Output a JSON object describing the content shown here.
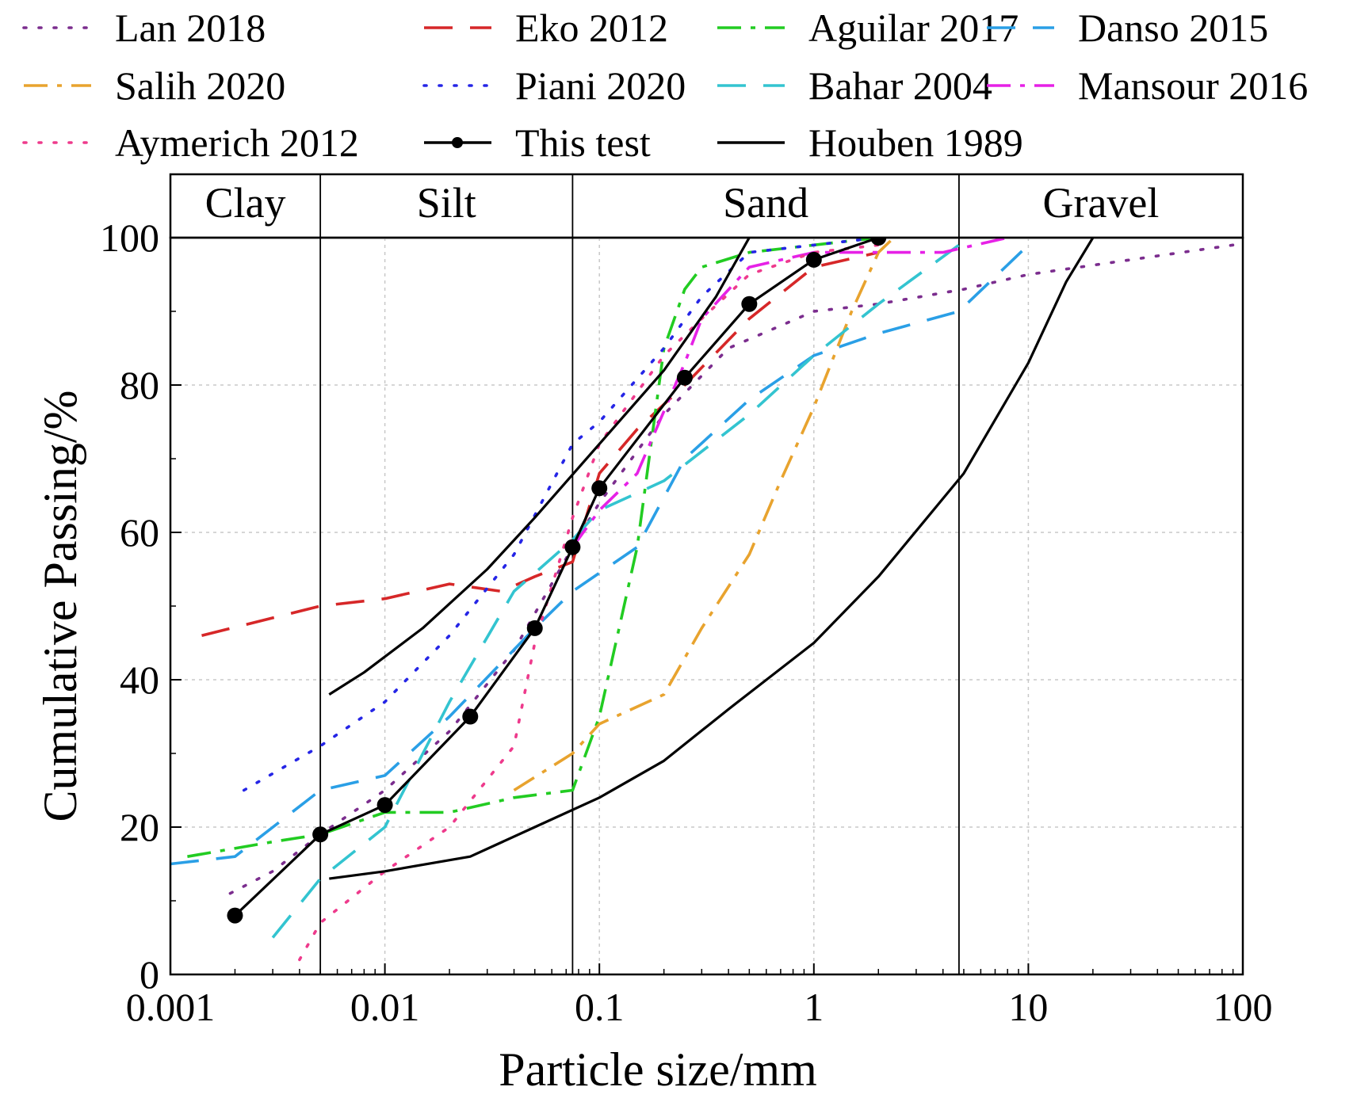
{
  "chart_data": {
    "type": "line",
    "x_scale": "log",
    "xlabel": "Particle size/mm",
    "ylabel": "Cumulative Passing/%",
    "xlim": [
      0.001,
      100
    ],
    "ylim": [
      0,
      100
    ],
    "x_ticks": [
      {
        "value": 0.001,
        "label": "0.001"
      },
      {
        "value": 0.01,
        "label": "0.01"
      },
      {
        "value": 0.1,
        "label": "0.1"
      },
      {
        "value": 1,
        "label": "1"
      },
      {
        "value": 10,
        "label": "10"
      },
      {
        "value": 100,
        "label": "100"
      }
    ],
    "y_ticks": [
      {
        "value": 0,
        "label": "0"
      },
      {
        "value": 20,
        "label": "20"
      },
      {
        "value": 40,
        "label": "40"
      },
      {
        "value": 60,
        "label": "60"
      },
      {
        "value": 80,
        "label": "80"
      },
      {
        "value": 100,
        "label": "100"
      }
    ],
    "grid": true,
    "legend_position": "top",
    "soil_bands": [
      {
        "label": "Clay",
        "from": 0.001,
        "to": 0.005
      },
      {
        "label": "Silt",
        "from": 0.005,
        "to": 0.075
      },
      {
        "label": "Sand",
        "from": 0.075,
        "to": 4.75
      },
      {
        "label": "Gravel",
        "from": 4.75,
        "to": 100
      }
    ],
    "series": [
      {
        "name": "Lan 2018",
        "color": "#7b2d8e",
        "dash": "dot",
        "marker": false,
        "points": [
          [
            0.0019,
            11
          ],
          [
            0.003,
            14
          ],
          [
            0.005,
            19
          ],
          [
            0.01,
            25
          ],
          [
            0.02,
            33
          ],
          [
            0.04,
            44
          ],
          [
            0.075,
            58
          ],
          [
            0.1,
            64
          ],
          [
            0.2,
            76
          ],
          [
            0.4,
            85
          ],
          [
            1,
            90
          ],
          [
            2,
            91
          ],
          [
            5,
            93
          ],
          [
            10,
            95
          ],
          [
            30,
            97
          ],
          [
            90,
            99
          ]
        ]
      },
      {
        "name": "Eko 2012",
        "color": "#d62728",
        "dash": "longdash",
        "marker": false,
        "points": [
          [
            0.0014,
            46
          ],
          [
            0.005,
            50
          ],
          [
            0.01,
            51
          ],
          [
            0.02,
            53
          ],
          [
            0.035,
            52
          ],
          [
            0.05,
            54
          ],
          [
            0.075,
            56
          ],
          [
            0.1,
            68
          ],
          [
            0.15,
            74
          ],
          [
            0.25,
            80
          ],
          [
            0.5,
            89
          ],
          [
            1,
            96
          ],
          [
            2,
            98
          ]
        ]
      },
      {
        "name": "Aguilar 2017",
        "color": "#22cc22",
        "dash": "dashdot",
        "marker": false,
        "points": [
          [
            0.0012,
            16
          ],
          [
            0.003,
            18
          ],
          [
            0.005,
            19
          ],
          [
            0.01,
            22
          ],
          [
            0.02,
            22
          ],
          [
            0.04,
            24
          ],
          [
            0.075,
            25
          ],
          [
            0.1,
            35
          ],
          [
            0.15,
            58
          ],
          [
            0.2,
            85
          ],
          [
            0.25,
            93
          ],
          [
            0.3,
            96
          ],
          [
            0.5,
            98
          ],
          [
            1,
            99
          ],
          [
            2,
            100
          ]
        ]
      },
      {
        "name": "Danso 2015",
        "color": "#2a9fe6",
        "dash": "longdash",
        "marker": false,
        "points": [
          [
            0.001,
            15
          ],
          [
            0.002,
            16
          ],
          [
            0.005,
            25
          ],
          [
            0.01,
            27
          ],
          [
            0.02,
            35
          ],
          [
            0.05,
            47
          ],
          [
            0.075,
            52
          ],
          [
            0.15,
            58
          ],
          [
            0.25,
            70
          ],
          [
            0.5,
            78
          ],
          [
            1,
            84
          ],
          [
            2,
            87
          ],
          [
            4.75,
            90
          ],
          [
            10,
            99
          ]
        ]
      },
      {
        "name": "Salih 2020",
        "color": "#e8a32e",
        "dash": "dashdot",
        "marker": false,
        "points": [
          [
            0.04,
            25
          ],
          [
            0.075,
            30
          ],
          [
            0.1,
            34
          ],
          [
            0.2,
            38
          ],
          [
            0.3,
            47
          ],
          [
            0.5,
            57
          ],
          [
            0.7,
            67
          ],
          [
            1,
            77
          ],
          [
            1.5,
            90
          ],
          [
            2,
            98
          ],
          [
            2.36,
            100
          ]
        ]
      },
      {
        "name": "Piani 2020",
        "color": "#2525e6",
        "dash": "dot",
        "marker": false,
        "points": [
          [
            0.0022,
            25
          ],
          [
            0.005,
            31
          ],
          [
            0.01,
            37
          ],
          [
            0.02,
            46
          ],
          [
            0.04,
            57
          ],
          [
            0.075,
            72
          ],
          [
            0.1,
            75
          ],
          [
            0.2,
            85
          ],
          [
            0.3,
            92
          ],
          [
            0.5,
            98
          ],
          [
            1,
            99
          ],
          [
            2,
            100
          ]
        ]
      },
      {
        "name": "Bahar 2004",
        "color": "#33c4d0",
        "dash": "longdash",
        "marker": false,
        "points": [
          [
            0.003,
            5
          ],
          [
            0.005,
            13
          ],
          [
            0.01,
            20
          ],
          [
            0.02,
            37
          ],
          [
            0.04,
            52
          ],
          [
            0.075,
            59
          ],
          [
            0.1,
            63
          ],
          [
            0.2,
            67
          ],
          [
            0.5,
            76
          ],
          [
            1,
            84
          ],
          [
            2,
            91
          ],
          [
            4.75,
            99
          ]
        ]
      },
      {
        "name": "Mansour 2016",
        "color": "#e621e6",
        "dash": "dashdot",
        "marker": false,
        "points": [
          [
            0.075,
            58
          ],
          [
            0.1,
            63
          ],
          [
            0.15,
            68
          ],
          [
            0.25,
            83
          ],
          [
            0.3,
            89
          ],
          [
            0.5,
            96
          ],
          [
            1,
            98
          ],
          [
            2,
            98
          ],
          [
            4,
            98
          ],
          [
            8,
            100
          ]
        ]
      },
      {
        "name": "Aymerich 2012",
        "color": "#ee3a8c",
        "dash": "dot",
        "marker": false,
        "points": [
          [
            0.004,
            2
          ],
          [
            0.005,
            7
          ],
          [
            0.01,
            14
          ],
          [
            0.02,
            20
          ],
          [
            0.04,
            31
          ],
          [
            0.05,
            45
          ],
          [
            0.075,
            62
          ],
          [
            0.1,
            72
          ],
          [
            0.2,
            84
          ],
          [
            0.3,
            89
          ],
          [
            0.5,
            95
          ],
          [
            1,
            98
          ],
          [
            2,
            99
          ]
        ]
      },
      {
        "name": "This test",
        "color": "#000000",
        "dash": "solid",
        "marker": true,
        "points": [
          [
            0.002,
            8
          ],
          [
            0.005,
            19
          ],
          [
            0.01,
            23
          ],
          [
            0.025,
            35
          ],
          [
            0.05,
            47
          ],
          [
            0.075,
            58
          ],
          [
            0.1,
            66
          ],
          [
            0.25,
            81
          ],
          [
            0.5,
            91
          ],
          [
            1,
            97
          ],
          [
            2,
            100
          ]
        ]
      },
      {
        "name": "Houben 1989",
        "color": "#000000",
        "dash": "solid",
        "marker": false,
        "points": [
          [
            0.0055,
            38
          ],
          [
            0.008,
            41
          ],
          [
            0.015,
            47
          ],
          [
            0.03,
            55
          ],
          [
            0.05,
            62
          ],
          [
            0.1,
            72
          ],
          [
            0.2,
            82
          ],
          [
            0.35,
            92
          ],
          [
            0.5,
            100
          ]
        ]
      },
      {
        "name": "Houben 1989",
        "color": "#000000",
        "dash": "solid",
        "marker": false,
        "legend": false,
        "points": [
          [
            0.0055,
            13
          ],
          [
            0.01,
            14
          ],
          [
            0.025,
            16
          ],
          [
            0.05,
            20
          ],
          [
            0.1,
            24
          ],
          [
            0.2,
            29
          ],
          [
            0.4,
            36
          ],
          [
            1,
            45
          ],
          [
            2,
            54
          ],
          [
            5,
            68
          ],
          [
            10,
            83
          ],
          [
            15,
            94
          ],
          [
            20,
            100
          ]
        ]
      }
    ]
  }
}
